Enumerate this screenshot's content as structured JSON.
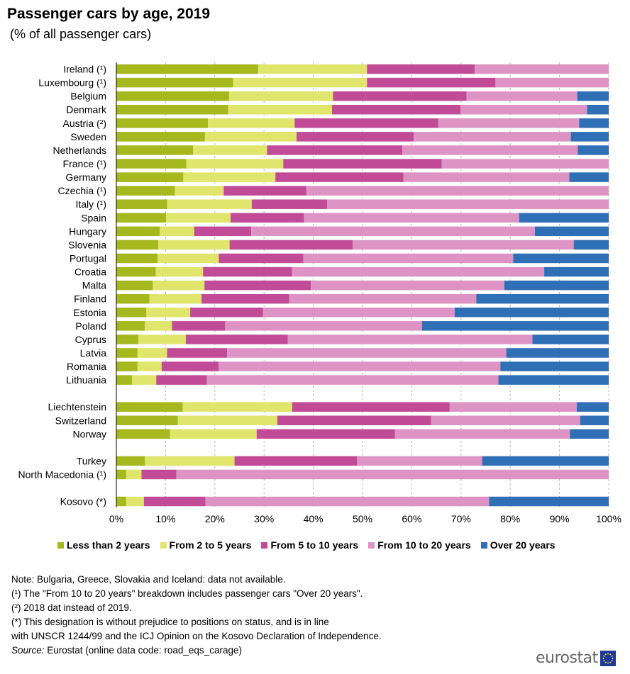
{
  "header": {
    "title": "Passenger cars by age, 2019",
    "subtitle": "(% of all passenger cars)"
  },
  "chart_data": {
    "type": "bar",
    "orientation": "horizontal",
    "stacked": true,
    "title": "Passenger cars by age, 2019",
    "subtitle": "(% of all passenger cars)",
    "xlim": [
      0,
      100
    ],
    "x_ticks": [
      "0%",
      "10%",
      "20%",
      "30%",
      "40%",
      "50%",
      "60%",
      "70%",
      "80%",
      "90%",
      "100%"
    ],
    "grid": "vertical dashed",
    "legend_position": "bottom",
    "colors": [
      "#a5b81e",
      "#e0e66c",
      "#c24b98",
      "#dd94c5",
      "#2f6fb5"
    ],
    "categories": [
      "Ireland (¹)",
      "Luxembourg (¹)",
      "Belgium",
      "Denmark",
      "Austria (²)",
      "Sweden",
      "Netherlands",
      "France (¹)",
      "Germany",
      "Czechia (¹)",
      "Italy (¹)",
      "Spain",
      "Hungary",
      "Slovenia",
      "Portugal",
      "Croatia",
      "Malta",
      "Finland",
      "Estonia",
      "Poland",
      "Cyprus",
      "Latvia",
      "Romania",
      "Lithuania",
      "Liechtenstein",
      "Switzerland",
      "Norway",
      "Turkey",
      "North Macedonia (¹)",
      "Kosovo (*)"
    ],
    "groups": [
      24,
      3,
      2,
      1
    ],
    "series": [
      {
        "name": "Less than 2 years",
        "values": [
          28.8,
          23.7,
          22.9,
          22.7,
          18.6,
          18.0,
          15.6,
          14.2,
          13.6,
          11.9,
          10.3,
          10.1,
          8.8,
          8.5,
          8.4,
          8.0,
          7.4,
          6.7,
          6.1,
          5.8,
          4.5,
          4.3,
          4.3,
          3.2,
          13.5,
          12.5,
          10.9,
          5.8,
          2.0,
          2.0
        ]
      },
      {
        "name": "From 2 to 5 years",
        "values": [
          22.1,
          27.2,
          21.1,
          21.1,
          17.6,
          18.6,
          15.0,
          19.7,
          18.7,
          9.9,
          17.2,
          13.1,
          7.0,
          14.5,
          12.4,
          9.6,
          10.5,
          10.6,
          8.9,
          5.5,
          9.6,
          6.0,
          4.9,
          4.9,
          22.2,
          20.2,
          17.6,
          18.2,
          3.1,
          3.6
        ]
      },
      {
        "name": "From 5 to 10 years",
        "values": [
          21.9,
          26.1,
          27.1,
          26.1,
          29.2,
          23.8,
          27.5,
          32.2,
          26.0,
          16.8,
          15.3,
          14.9,
          11.6,
          25.0,
          17.2,
          18.1,
          21.6,
          17.8,
          14.8,
          10.8,
          20.7,
          12.2,
          11.6,
          10.3,
          32.0,
          31.2,
          28.1,
          24.9,
          7.1,
          12.5
        ]
      },
      {
        "name": "From 10 to 20 years",
        "values": [
          27.2,
          23.0,
          22.5,
          25.7,
          28.6,
          31.9,
          35.6,
          33.9,
          33.7,
          61.4,
          57.2,
          43.7,
          57.6,
          44.9,
          42.6,
          51.2,
          39.3,
          38.0,
          38.9,
          40.0,
          49.7,
          56.7,
          57.2,
          59.2,
          25.8,
          30.3,
          35.5,
          25.4,
          87.8,
          57.6
        ]
      },
      {
        "name": "Over 20 years",
        "values": [
          0,
          0,
          6.4,
          4.4,
          6.0,
          7.7,
          6.3,
          0,
          8.0,
          0,
          0,
          18.2,
          15.0,
          7.1,
          19.4,
          13.1,
          21.2,
          26.9,
          31.3,
          37.9,
          15.5,
          20.8,
          22.0,
          22.4,
          6.5,
          5.8,
          7.9,
          25.7,
          0,
          24.3
        ]
      }
    ]
  },
  "notes": {
    "line1": "Note: Bulgaria, Greece, Slovakia and Iceland: data not available.",
    "line2": "(¹) The \"From 10 to 20 years\" breakdown includes passenger cars \"Over 20 years\".",
    "line3": "(²) 2018 dat instead of 2019.",
    "line4": "(*) This designation is without prejudice to positions on status, and is in line",
    "line5": "with UNSCR 1244/99 and the ICJ Opinion on the Kosovo Declaration of Independence.",
    "source_label": "Source:",
    "source_text": " Eurostat (online data code: road_eqs_carage)"
  },
  "logo": {
    "text": "eurostat",
    "icon": "eu-flag-icon"
  }
}
